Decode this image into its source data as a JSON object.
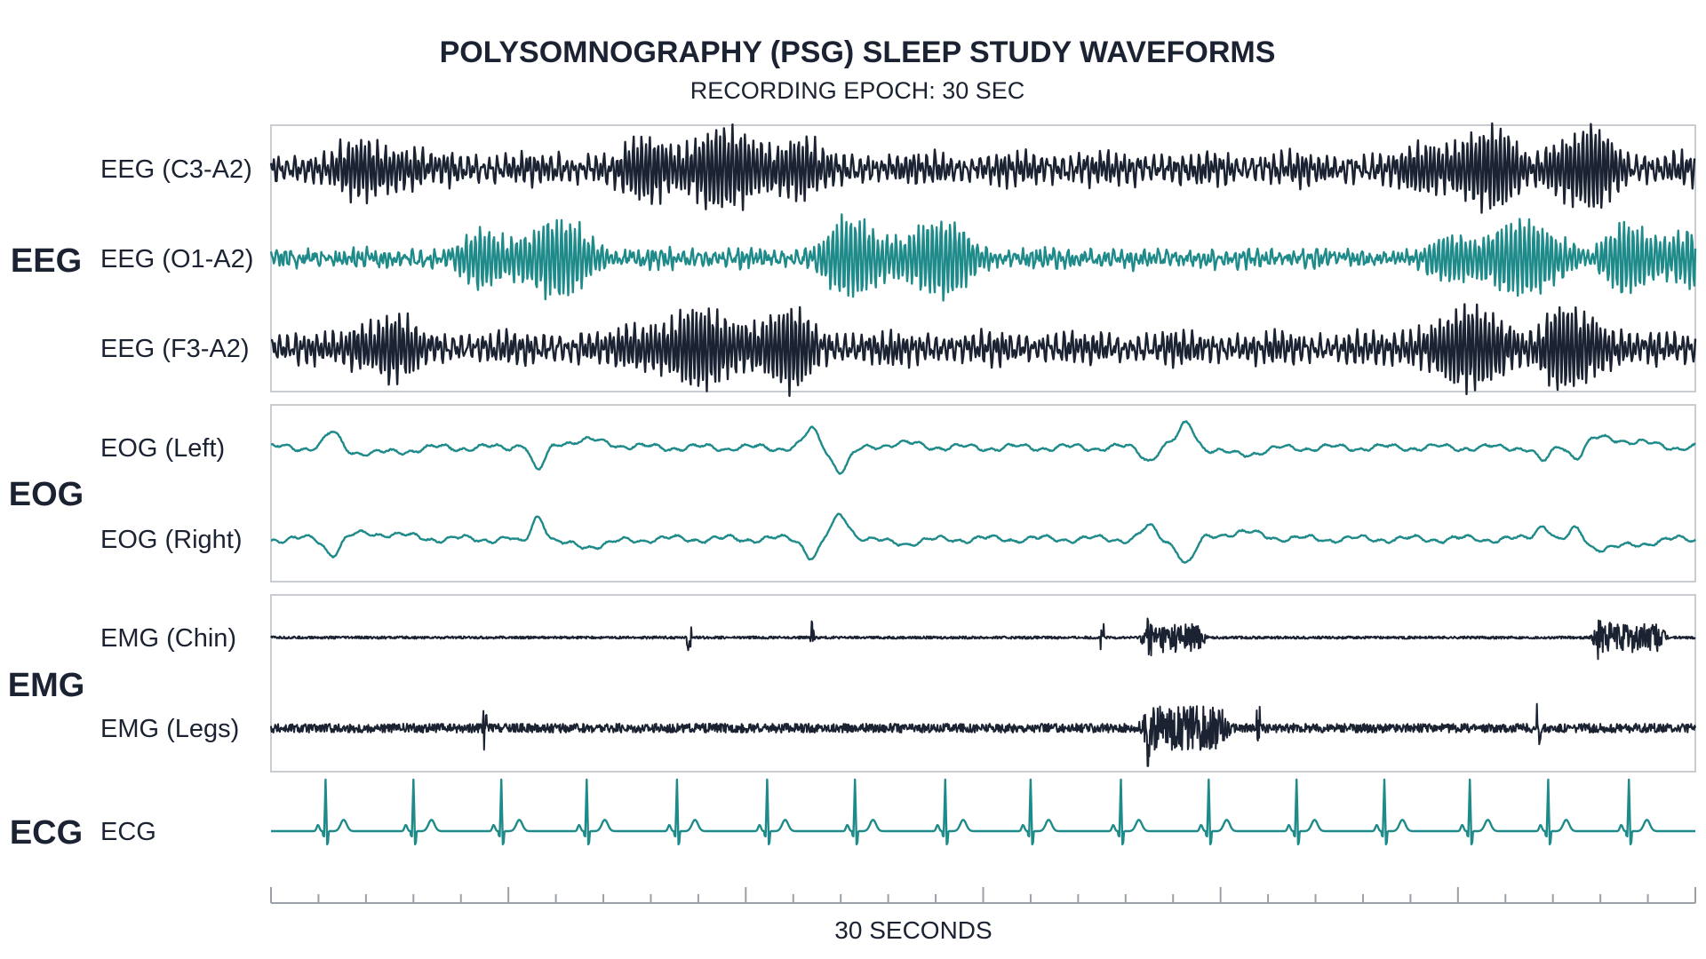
{
  "colors": {
    "dark_trace": "#1b2232",
    "teal_trace": "#1f8a8a",
    "panel_border": "#c9cdd2",
    "axis": "#9aa0a6"
  },
  "chart_data": {
    "type": "line",
    "title": "POLYSOMNOGRAPHY (PSG) SLEEP STUDY WAVEFORMS",
    "subtitle": "RECORDING EPOCH: 30 SEC",
    "xlabel": "30 SECONDS",
    "x_range_seconds": [
      0,
      30
    ],
    "x_tick_interval_seconds": 1,
    "groups": [
      {
        "name": "EEG",
        "boxed": true,
        "channels": [
          {
            "name": "EEG (C3-A2)",
            "color": "#1b2232",
            "kind": "eeg_central",
            "high_amplitude_windows_sec": [
              [
                2,
                2.5
              ],
              [
                8,
                11
              ],
              [
                24.5,
                26
              ],
              [
                27,
                28
              ]
            ]
          },
          {
            "name": "EEG (O1-A2)",
            "color": "#1f8a8a",
            "kind": "eeg_occipital_alpha",
            "high_amplitude_windows_sec": [
              [
                4.5,
                6.5
              ],
              [
                12,
                14.5
              ],
              [
                25,
                27
              ],
              [
                28.5,
                30
              ]
            ]
          },
          {
            "name": "EEG (F3-A2)",
            "color": "#1b2232",
            "kind": "eeg_frontal",
            "high_amplitude_windows_sec": [
              [
                2,
                2.5
              ],
              [
                8,
                11
              ],
              [
                24.5,
                26
              ],
              [
                27,
                28
              ]
            ]
          }
        ]
      },
      {
        "name": "EOG",
        "boxed": true,
        "channels": [
          {
            "name": "EOG (Left)",
            "color": "#1f8a8a",
            "kind": "eog_left",
            "deflections": [
              {
                "t": 1.3,
                "a": 0.5
              },
              {
                "t": 5.4,
                "a": 0.3
              },
              {
                "t": 5.6,
                "a": -0.9
              },
              {
                "t": 11.4,
                "a": 0.6
              },
              {
                "t": 12.0,
                "a": -0.6
              },
              {
                "t": 18.5,
                "a": -0.4
              },
              {
                "t": 19.3,
                "a": 0.7
              },
              {
                "t": 26.8,
                "a": -0.5
              },
              {
                "t": 27.5,
                "a": -0.5
              }
            ]
          },
          {
            "name": "EOG (Right)",
            "color": "#1f8a8a",
            "kind": "eog_right",
            "deflections": [
              {
                "t": 1.3,
                "a": -0.5
              },
              {
                "t": 5.4,
                "a": -0.3
              },
              {
                "t": 5.6,
                "a": 0.9
              },
              {
                "t": 11.4,
                "a": -0.6
              },
              {
                "t": 12.0,
                "a": 0.6
              },
              {
                "t": 18.5,
                "a": 0.4
              },
              {
                "t": 19.3,
                "a": -0.7
              },
              {
                "t": 26.8,
                "a": 0.5
              },
              {
                "t": 27.5,
                "a": 0.5
              }
            ]
          }
        ]
      },
      {
        "name": "EMG",
        "boxed": true,
        "channels": [
          {
            "name": "EMG (Chin)",
            "color": "#1b2232",
            "kind": "emg_chin",
            "bursts_sec": [
              [
                18.5,
                19.5
              ],
              [
                28.0,
                29.2
              ]
            ],
            "spikes_sec": [
              8.8,
              11.4,
              17.5
            ]
          },
          {
            "name": "EMG (Legs)",
            "color": "#1b2232",
            "kind": "emg_legs",
            "bursts_sec": [
              [
                18.5,
                20.0
              ]
            ],
            "spikes_sec": [
              4.5,
              20.8,
              26.7
            ]
          }
        ]
      },
      {
        "name": "ECG",
        "boxed": false,
        "channels": [
          {
            "name": "ECG",
            "color": "#1f8a8a",
            "kind": "ecg",
            "r_peaks_sec": [
              1.15,
              3.0,
              4.85,
              6.65,
              8.55,
              10.45,
              12.3,
              14.2,
              16.0,
              17.9,
              19.75,
              21.6,
              23.45,
              25.25,
              26.9,
              28.6
            ]
          }
        ]
      }
    ]
  }
}
